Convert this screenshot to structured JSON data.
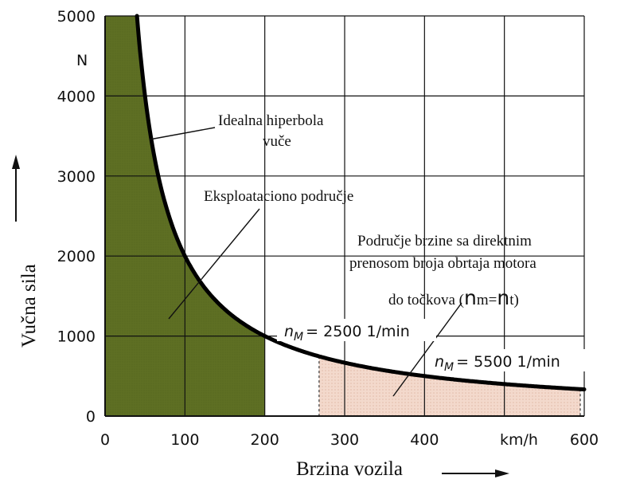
{
  "chart_data": {
    "type": "area",
    "xlabel": "Brzina vozila",
    "ylabel": "Vučna sila",
    "x_unit": "km/h",
    "y_unit": "N",
    "xlim": [
      0,
      600
    ],
    "ylim": [
      0,
      5000
    ],
    "x_ticks": [
      0,
      100,
      200,
      300,
      400,
      600
    ],
    "y_ticks": [
      0,
      1000,
      2000,
      3000,
      4000,
      5000
    ],
    "grid": true,
    "series": [
      {
        "name": "Idealna hiperbola vuče",
        "x": [
          40,
          50,
          60,
          70,
          80,
          90,
          100,
          120,
          140,
          160,
          180,
          200,
          240,
          280,
          320,
          360,
          400,
          450,
          500,
          550,
          600
        ],
        "y": [
          5000,
          4000,
          3333,
          2857,
          2500,
          2222,
          2000,
          1667,
          1429,
          1250,
          1111,
          1000,
          833,
          714,
          625,
          556,
          500,
          444,
          400,
          364,
          333
        ]
      }
    ],
    "regions": [
      {
        "label": "Eksploataciono područje",
        "x_range": [
          0,
          200
        ],
        "color": "#5e6f23"
      },
      {
        "label": "Područje brzine sa direktnim prenosom broja obrtaja motora do točkova",
        "x_range": [
          268,
          595
        ],
        "color": "#f3d9cc"
      }
    ],
    "annotations": {
      "hyperbola_line1": "Idealna hiperbola",
      "hyperbola_line2": "vuče",
      "region_direct_line1": "Područje brzine sa direktnim",
      "region_direct_line2": "prenosom broja obrtaja motora",
      "region_direct_line3_pre": "do točkova (",
      "region_direct_line3_n1": "n",
      "region_direct_line3_m": "m=",
      "region_direct_line3_n2": "n",
      "region_direct_line3_post": "t)",
      "nm1_n": "n",
      "nm1_sub": "M",
      "nm1_val": "= 2500 1/min",
      "nm2_n": "n",
      "nm2_sub": "M",
      "nm2_val": "= 5500 1/min"
    }
  }
}
